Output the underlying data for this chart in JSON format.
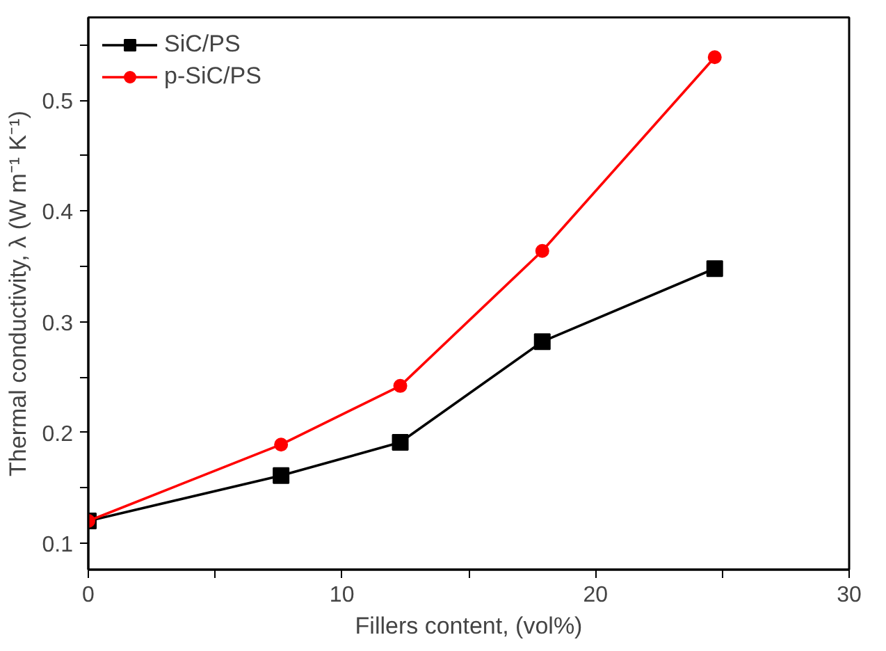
{
  "chart_data": {
    "type": "line",
    "xlabel": "Fillers content, (vol%)",
    "ylabel": "Thermal conductivity, λ (W m⁻¹ K⁻¹)",
    "x": [
      0,
      7.6,
      12.3,
      17.9,
      24.7
    ],
    "series": [
      {
        "name": "SiC/PS",
        "color": "#000000",
        "marker": "square",
        "values": [
          0.12,
          0.161,
          0.191,
          0.282,
          0.348
        ]
      },
      {
        "name": "p-SiC/PS",
        "color": "#ff0000",
        "marker": "circle",
        "values": [
          0.12,
          0.189,
          0.242,
          0.364,
          0.539
        ]
      }
    ],
    "xlim": [
      0,
      30
    ],
    "ylim": [
      0.076,
      0.575
    ],
    "xticks": [
      0,
      {
        "value": 5,
        "label": null
      },
      10,
      {
        "value": 15,
        "label": null
      },
      20,
      {
        "value": 25,
        "label": null
      },
      30
    ],
    "yticks": [
      {
        "value": 0.1,
        "label": "0.1"
      },
      {
        "value": 0.15,
        "label": null
      },
      {
        "value": 0.2,
        "label": "0.2"
      },
      {
        "value": 0.25,
        "label": null
      },
      {
        "value": 0.3,
        "label": "0.3"
      },
      {
        "value": 0.35,
        "label": null
      },
      {
        "value": 0.4,
        "label": "0.4"
      },
      {
        "value": 0.45,
        "label": null
      },
      {
        "value": 0.5,
        "label": "0.5"
      },
      {
        "value": 0.55,
        "label": null
      }
    ],
    "grid": false,
    "legend": "top left",
    "line_style": "solid"
  }
}
